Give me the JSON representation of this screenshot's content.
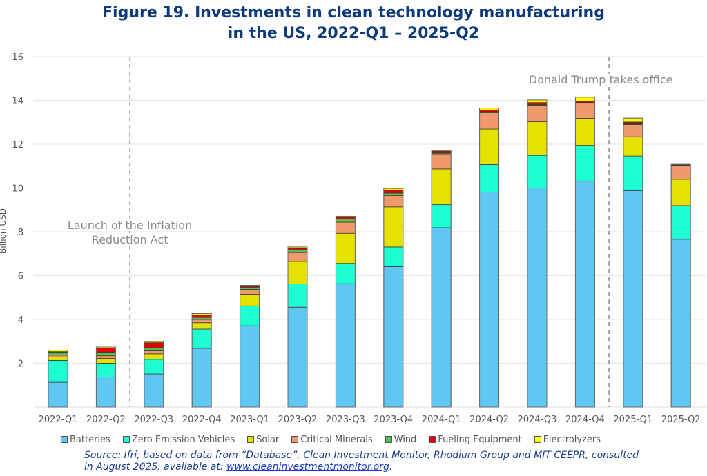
{
  "chart_data": {
    "type": "bar",
    "stacked": true,
    "title": "Figure 19. Investments in clean technology manufacturing in the US, 2022-Q1 – 2025-Q2",
    "title_lines": [
      "Figure 19. Investments in clean technology manufacturing",
      "in the US, 2022-Q1 – 2025-Q2"
    ],
    "xlabel": "",
    "ylabel": "Billion USD",
    "ylim": [
      0,
      16
    ],
    "yticks": [
      0,
      2,
      4,
      6,
      8,
      10,
      12,
      14,
      16
    ],
    "ytick_labels": [
      "-",
      "2",
      "4",
      "6",
      "8",
      "10",
      "12",
      "14",
      "16"
    ],
    "grid": true,
    "legend_position": "bottom",
    "categories": [
      "2022-Q1",
      "2022-Q2",
      "2022-Q3",
      "2022-Q4",
      "2023-Q1",
      "2023-Q2",
      "2023-Q3",
      "2023-Q4",
      "2024-Q1",
      "2024-Q2",
      "2024-Q3",
      "2024-Q4",
      "2025-Q1",
      "2025-Q2"
    ],
    "series": [
      {
        "name": "Batteries",
        "color": "#5EC8F2",
        "values": [
          1.13,
          1.37,
          1.51,
          2.68,
          3.71,
          4.56,
          5.63,
          6.41,
          8.19,
          9.81,
          10.0,
          10.31,
          9.88,
          7.66
        ]
      },
      {
        "name": "Zero Emission Vehicles",
        "color": "#1EFFD2",
        "values": [
          1.0,
          0.63,
          0.67,
          0.88,
          0.91,
          1.06,
          0.93,
          0.9,
          1.05,
          1.26,
          1.49,
          1.64,
          1.58,
          1.54
        ]
      },
      {
        "name": "Solar",
        "color": "#E6E200",
        "values": [
          0.16,
          0.22,
          0.25,
          0.29,
          0.53,
          1.03,
          1.37,
          1.83,
          1.63,
          1.62,
          1.53,
          1.23,
          0.88,
          1.2
        ]
      },
      {
        "name": "Critical Minerals",
        "color": "#F0996C",
        "values": [
          0.08,
          0.12,
          0.14,
          0.15,
          0.22,
          0.4,
          0.51,
          0.52,
          0.69,
          0.74,
          0.76,
          0.69,
          0.56,
          0.61
        ]
      },
      {
        "name": "Wind",
        "color": "#4CC54A",
        "values": [
          0.13,
          0.16,
          0.14,
          0.09,
          0.1,
          0.12,
          0.14,
          0.1,
          0.04,
          0.05,
          0.03,
          0.03,
          0.03,
          0.02
        ]
      },
      {
        "name": "Fueling Equipment",
        "color": "#E80000",
        "values": [
          0.03,
          0.19,
          0.23,
          0.11,
          0.05,
          0.07,
          0.09,
          0.14,
          0.08,
          0.08,
          0.09,
          0.06,
          0.08,
          0.03
        ]
      },
      {
        "name": "Electrolyzers",
        "color": "#FFFF00",
        "values": [
          0.07,
          0.05,
          0.05,
          0.07,
          0.04,
          0.07,
          0.04,
          0.08,
          0.04,
          0.09,
          0.12,
          0.19,
          0.18,
          0.02
        ]
      }
    ],
    "annotations": [
      {
        "text_lines": [
          "Launch of the Inflation",
          "Reduction Act"
        ],
        "between": [
          "2022-Q2",
          "2022-Q3"
        ],
        "style": "dashed-vertical-line"
      },
      {
        "text_lines": [
          "Donald Trump takes office"
        ],
        "between": [
          "2024-Q4",
          "2025-Q1"
        ],
        "style": "dashed-vertical-line"
      }
    ]
  },
  "source": {
    "prefix": "Source: Ifri, based on data from “Database”, Clean Investment Monitor, Rhodium Group and MIT CEEPR, consulted in August 2025, available at: ",
    "link_text": "www.cleaninvestmentmonitor.org",
    "suffix": "."
  }
}
